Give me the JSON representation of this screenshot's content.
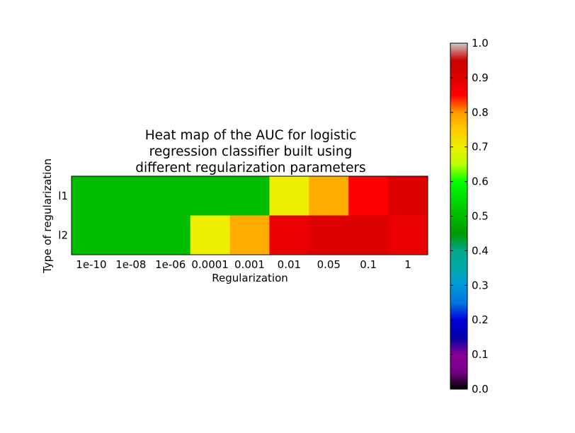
{
  "chart_data": {
    "type": "heatmap",
    "title": [
      "Heat map of the AUC for logistic",
      "regression classifier built using",
      "different regularization parameters"
    ],
    "xlabel": "Regularization",
    "ylabel": "Type of regularization",
    "x_categories": [
      "1e-10",
      "1e-08",
      "1e-06",
      "0.0001",
      "0.001",
      "0.01",
      "0.05",
      "0.1",
      "1"
    ],
    "y_categories": [
      "l1",
      "l2"
    ],
    "values": [
      [
        0.5,
        0.5,
        0.5,
        0.5,
        0.5,
        0.7,
        0.78,
        0.85,
        0.9
      ],
      [
        0.5,
        0.5,
        0.5,
        0.7,
        0.78,
        0.88,
        0.9,
        0.9,
        0.88
      ]
    ],
    "colorbar": {
      "range": [
        0.0,
        1.0
      ],
      "ticks": [
        "0.0",
        "0.1",
        "0.2",
        "0.3",
        "0.4",
        "0.5",
        "0.6",
        "0.7",
        "0.8",
        "0.9",
        "1.0"
      ],
      "colormap": "nipy_spectral"
    }
  }
}
